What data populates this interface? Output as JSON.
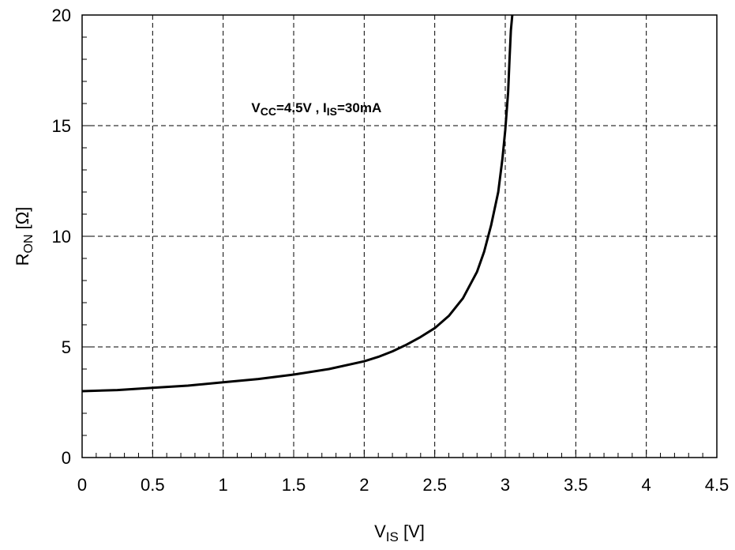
{
  "chart_data": {
    "type": "line",
    "xlabel": {
      "main": "V",
      "sub": "IS",
      "unit": " [V]"
    },
    "ylabel": {
      "main": "R",
      "sub": "ON",
      "unit": " [Ω]"
    },
    "xlim": [
      0,
      4.5
    ],
    "ylim": [
      0,
      20
    ],
    "x_ticks": [
      "0",
      "0.5",
      "1",
      "1.5",
      "2",
      "2.5",
      "3",
      "3.5",
      "4",
      "4.5"
    ],
    "y_ticks": [
      "0",
      "5",
      "10",
      "15",
      "20"
    ],
    "grid": true,
    "annotation": {
      "parts": [
        {
          "text": "V",
          "sub": false
        },
        {
          "text": "CC",
          "sub": true
        },
        {
          "text": "=4.5V , I",
          "sub": false
        },
        {
          "text": "IS",
          "sub": true
        },
        {
          "text": "=30mA",
          "sub": false
        }
      ],
      "x": 1.2,
      "y": 15.6
    },
    "series": [
      {
        "x": [
          0,
          0.25,
          0.5,
          0.75,
          1.0,
          1.25,
          1.5,
          1.75,
          2.0,
          2.1,
          2.2,
          2.3,
          2.4,
          2.5,
          2.6,
          2.7,
          2.8,
          2.85,
          2.9,
          2.95,
          2.98,
          3.0,
          3.02,
          3.03,
          3.04,
          3.05
        ],
        "y": [
          3.0,
          3.05,
          3.15,
          3.25,
          3.4,
          3.55,
          3.75,
          4.0,
          4.35,
          4.55,
          4.8,
          5.1,
          5.45,
          5.85,
          6.4,
          7.2,
          8.4,
          9.3,
          10.5,
          12.0,
          13.5,
          14.8,
          16.5,
          18.0,
          19.3,
          20.0
        ]
      }
    ]
  }
}
